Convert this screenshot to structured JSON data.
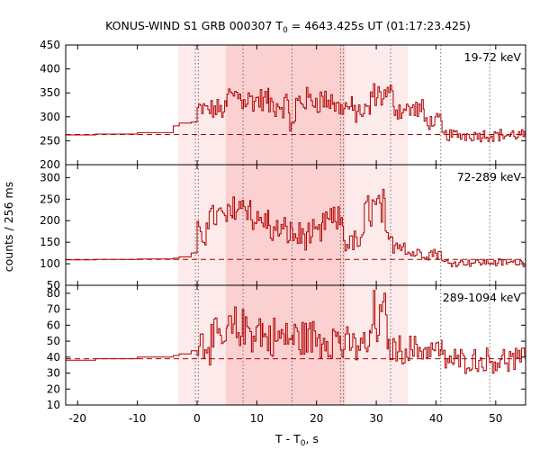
{
  "chart_data": {
    "type": "line",
    "title_main": "KONUS-WIND S1 GRB 000307 T",
    "title_sub": "0",
    "title_rest": " = 4643.425s UT (01:17:23.425)",
    "xlabel_main": "T - T",
    "xlabel_sub": "0",
    "xlabel_rest": ", s",
    "ylabel": "counts / 256 ms",
    "xlim": [
      -22,
      55
    ],
    "x_ticks": [
      -20,
      -10,
      0,
      10,
      20,
      30,
      40,
      50
    ],
    "colors": {
      "line": "#b00000",
      "bg_dashed": "#b00000",
      "band_outer": "#fdebeb",
      "band_inner": "#fbd0d0",
      "vline": "#555555",
      "axis": "#000000"
    },
    "shaded_intervals": [
      {
        "from": -3.2,
        "to": 35.3,
        "level": "outer"
      },
      {
        "from": 4.8,
        "to": 24.8,
        "level": "inner"
      }
    ],
    "vertical_lines": [
      -0.3,
      0.2,
      7.7,
      15.9,
      24.0,
      24.5,
      32.4,
      40.8,
      49.0
    ],
    "panels": [
      {
        "label": "19-72 keV",
        "ylim": [
          200,
          450
        ],
        "y_ticks": [
          200,
          250,
          300,
          350,
          400,
          450
        ],
        "background_level": 263,
        "pre_steps": [
          [
            -22,
            262
          ],
          [
            -17,
            264
          ],
          [
            -10,
            267
          ],
          [
            -4,
            281
          ],
          [
            -3,
            287
          ],
          [
            -1,
            289
          ]
        ],
        "segments": [
          {
            "from": 0,
            "to": 5,
            "base": 315,
            "amp": 20
          },
          {
            "from": 5,
            "to": 7.5,
            "base": 345,
            "amp": 25
          },
          {
            "from": 7.5,
            "to": 12,
            "base": 335,
            "amp": 25
          },
          {
            "from": 12,
            "to": 15.5,
            "base": 325,
            "amp": 25
          },
          {
            "from": 15.5,
            "to": 16.5,
            "base": 280,
            "amp": 20
          },
          {
            "from": 16.5,
            "to": 23,
            "base": 335,
            "amp": 25
          },
          {
            "from": 23,
            "to": 26,
            "base": 320,
            "amp": 20
          },
          {
            "from": 26,
            "to": 29,
            "base": 310,
            "amp": 22
          },
          {
            "from": 29,
            "to": 33,
            "base": 345,
            "amp": 25
          },
          {
            "from": 33,
            "to": 38,
            "base": 315,
            "amp": 20
          },
          {
            "from": 38,
            "to": 41,
            "base": 290,
            "amp": 15
          },
          {
            "from": 41,
            "to": 55,
            "base": 262,
            "amp": 12
          }
        ]
      },
      {
        "label": "72-289 keV",
        "ylim": [
          50,
          330
        ],
        "y_ticks": [
          50,
          100,
          150,
          200,
          250,
          300
        ],
        "background_level": 110,
        "pre_steps": [
          [
            -22,
            109
          ],
          [
            -17,
            110
          ],
          [
            -10,
            111
          ],
          [
            -4,
            113
          ],
          [
            -3,
            116
          ],
          [
            -1,
            125
          ]
        ],
        "segments": [
          {
            "from": 0,
            "to": 1.5,
            "base": 165,
            "amp": 30
          },
          {
            "from": 1.5,
            "to": 6,
            "base": 210,
            "amp": 30
          },
          {
            "from": 6,
            "to": 9,
            "base": 235,
            "amp": 30
          },
          {
            "from": 9,
            "to": 12,
            "base": 200,
            "amp": 30
          },
          {
            "from": 12,
            "to": 16,
            "base": 175,
            "amp": 30
          },
          {
            "from": 16,
            "to": 21,
            "base": 165,
            "amp": 30
          },
          {
            "from": 21,
            "to": 24.5,
            "base": 200,
            "amp": 30
          },
          {
            "from": 24.5,
            "to": 28,
            "base": 150,
            "amp": 25
          },
          {
            "from": 28,
            "to": 31.5,
            "base": 230,
            "amp": 40
          },
          {
            "from": 31.5,
            "to": 35,
            "base": 150,
            "amp": 25
          },
          {
            "from": 35,
            "to": 41,
            "base": 125,
            "amp": 15
          },
          {
            "from": 41,
            "to": 55,
            "base": 103,
            "amp": 8
          }
        ]
      },
      {
        "label": "289-1094 keV",
        "ylim": [
          10,
          85
        ],
        "y_ticks": [
          10,
          20,
          30,
          40,
          50,
          60,
          70,
          80
        ],
        "background_level": 39,
        "pre_steps": [
          [
            -22,
            38
          ],
          [
            -17,
            39
          ],
          [
            -10,
            40
          ],
          [
            -4,
            41
          ],
          [
            -3,
            42
          ],
          [
            -1,
            44
          ]
        ],
        "segments": [
          {
            "from": 0,
            "to": 5,
            "base": 50,
            "amp": 12
          },
          {
            "from": 5,
            "to": 11,
            "base": 57,
            "amp": 13
          },
          {
            "from": 11,
            "to": 16,
            "base": 52,
            "amp": 12
          },
          {
            "from": 16,
            "to": 24,
            "base": 52,
            "amp": 12
          },
          {
            "from": 24,
            "to": 29,
            "base": 47,
            "amp": 10
          },
          {
            "from": 29,
            "to": 32,
            "base": 62,
            "amp": 18
          },
          {
            "from": 32,
            "to": 41,
            "base": 45,
            "amp": 8
          },
          {
            "from": 41,
            "to": 55,
            "base": 38,
            "amp": 7
          }
        ]
      }
    ]
  }
}
